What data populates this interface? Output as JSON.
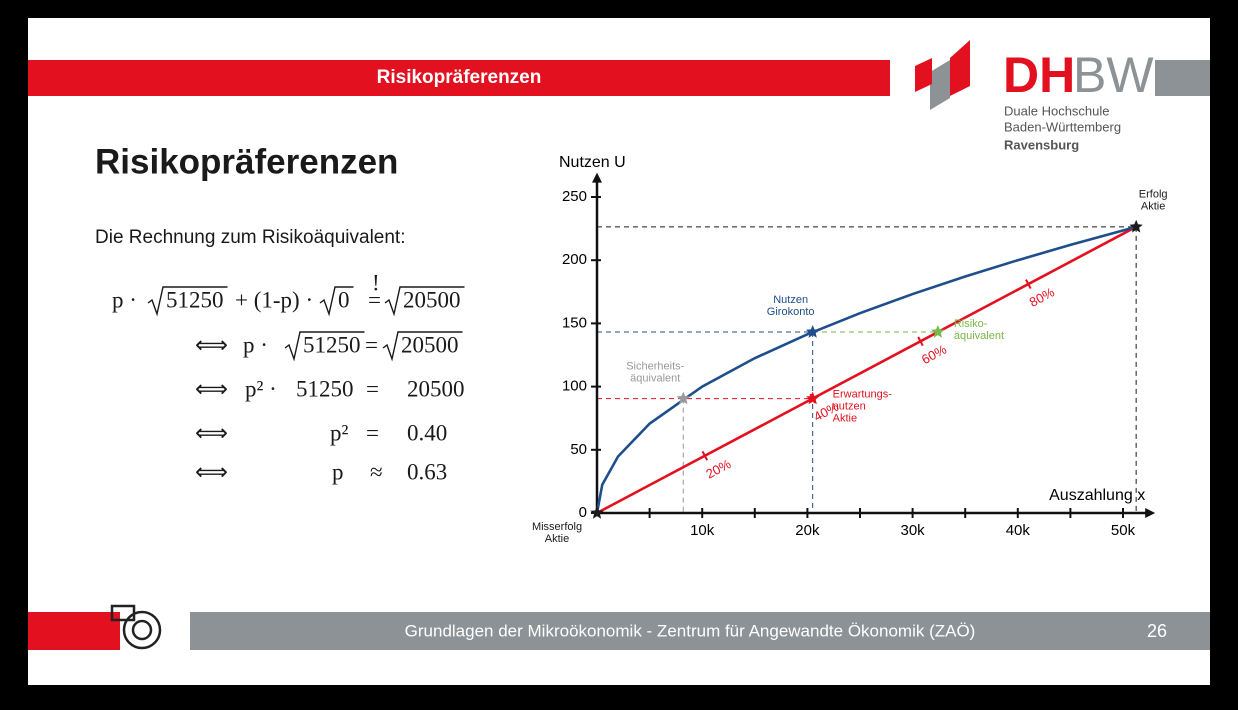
{
  "header": {
    "title": "Risikopräferenzen"
  },
  "logo": {
    "dh": "DH",
    "bw": "BW",
    "line1": "Duale Hochschule",
    "line2": "Baden-Württemberg",
    "line3": "Ravensburg"
  },
  "slide": {
    "title": "Risikopräferenzen",
    "intro": "Die Rechnung zum Risikoäquivalent:"
  },
  "equations": [
    {
      "cells": [
        "p ·",
        {
          "sqrt": "51250"
        },
        "+ (1-p) ·",
        {
          "sqrt": "0"
        },
        {
          "text": "=",
          "over": "!"
        },
        {
          "sqrt": "20500"
        }
      ]
    },
    {
      "cells": [
        "⟺",
        "p ·",
        {
          "sqrt": "51250"
        },
        "=",
        {
          "sqrt": "20500"
        }
      ]
    },
    {
      "cells": [
        "⟺",
        "p² ·",
        "51250",
        "=",
        "20500"
      ]
    },
    {
      "cells": [
        "⟺",
        "p²",
        "=",
        "0.40"
      ]
    },
    {
      "cells": [
        "⟺",
        "p",
        "≈",
        "0.63"
      ]
    }
  ],
  "chart": {
    "type": "line",
    "y_label": "Nutzen U",
    "x_label": "Auszahlung x",
    "xlim": [
      0,
      52300
    ],
    "ylim": [
      0,
      263
    ],
    "xticks": [
      {
        "value": 10000,
        "label": "10k"
      },
      {
        "value": 20000,
        "label": "20k"
      },
      {
        "value": 30000,
        "label": "30k"
      },
      {
        "value": 40000,
        "label": "40k"
      },
      {
        "value": 50000,
        "label": "50k"
      }
    ],
    "xminor": [
      5000,
      15000,
      25000,
      35000,
      45000
    ],
    "yticks": [
      0,
      50,
      100,
      150,
      200,
      250
    ],
    "curve": {
      "color": "#1f4e8c",
      "x": [
        0,
        500,
        2000,
        5000,
        10000,
        15000,
        20000,
        25000,
        30000,
        35000,
        40000,
        45000,
        51250
      ],
      "values": [
        0,
        22.4,
        44.7,
        70.7,
        100,
        122.5,
        141.4,
        158.1,
        173.2,
        187.1,
        200,
        212.1,
        226.4
      ]
    },
    "line": {
      "color": "#e3101f",
      "x": [
        0,
        51250
      ],
      "values": [
        0,
        226.4
      ]
    },
    "line_markers": {
      "values": [
        20,
        40,
        60,
        80
      ],
      "value_labels": [
        "20%",
        "40%",
        "60%",
        "80%"
      ]
    },
    "points": [
      {
        "label": [
          "Misserfolg",
          "Aktie"
        ],
        "x": 0,
        "u": 0,
        "color": "#1a1a1a",
        "guides": []
      },
      {
        "label": [
          "Erfolg",
          "Aktie"
        ],
        "x": 51250,
        "u": 226.4,
        "color": "#1a1a1a",
        "guides": [
          "h",
          "v"
        ]
      },
      {
        "label": [
          "Risiko-",
          "äquivalent"
        ],
        "x": 32400,
        "u": 143.2,
        "color": "#7ab648",
        "guides": [
          "h"
        ]
      },
      {
        "label": [
          "Nutzen",
          "Girokonto"
        ],
        "x": 20500,
        "u": 143.2,
        "color": "#1f4e8c",
        "guides": [
          "h",
          "v"
        ]
      },
      {
        "label": [
          "Erwartungs-",
          "nutzen",
          "Aktie"
        ],
        "x": 20500,
        "u": 90.5,
        "color": "#e3101f",
        "guides": [
          "h"
        ]
      },
      {
        "label": [
          "Sicherheits-",
          "äquivalent"
        ],
        "x": 8200,
        "u": 90.5,
        "color": "#999999",
        "guides": [
          "v"
        ]
      }
    ]
  },
  "footer": {
    "text": "Grundlagen der Mikroökonomik - Zentrum für Angewandte Ökonomik (ZAÖ)",
    "page": "26"
  }
}
